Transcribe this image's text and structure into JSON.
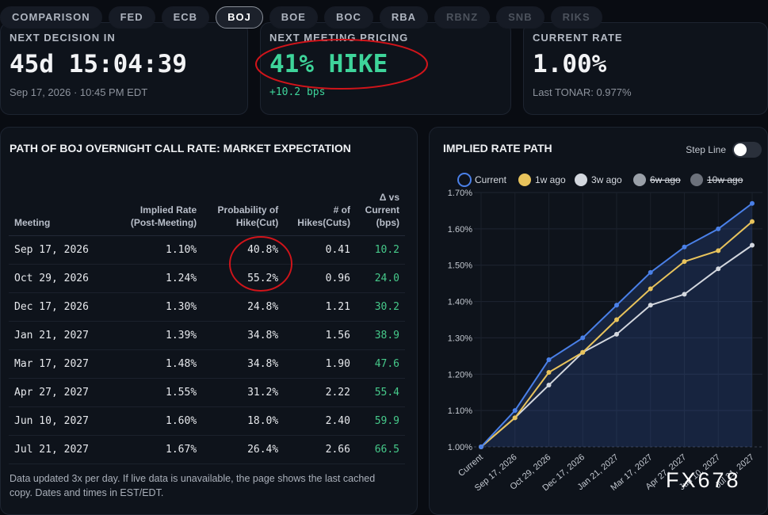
{
  "tabs": [
    {
      "label": "COMPARISON"
    },
    {
      "label": "FED"
    },
    {
      "label": "ECB"
    },
    {
      "label": "BOJ",
      "active": true
    },
    {
      "label": "BOE"
    },
    {
      "label": "BOC"
    },
    {
      "label": "RBA"
    },
    {
      "label": "RBNZ",
      "locked": true
    },
    {
      "label": "SNB",
      "locked": true
    },
    {
      "label": "RIKS",
      "locked": true
    }
  ],
  "cards": [
    {
      "label": "NEXT DECISION IN",
      "value": "45d 15:04:39",
      "sub": "Sep 17, 2026 · 10:45 PM EDT"
    },
    {
      "label": "NEXT MEETING PRICING",
      "value": "41% HIKE",
      "sub": "+10.2 bps"
    },
    {
      "label": "CURRENT RATE",
      "value": "1.00%",
      "sub": "Last TONAR: 0.977%"
    }
  ],
  "table": {
    "title": "PATH OF BOJ OVERNIGHT CALL RATE: MARKET EXPECTATION",
    "columns": [
      [
        "Meeting"
      ],
      [
        "Implied Rate",
        "(Post-Meeting)"
      ],
      [
        "Probability of",
        "Hike(Cut)"
      ],
      [
        "# of",
        "Hikes(Cuts)"
      ],
      [
        "Δ vs",
        "Current",
        "(bps)"
      ]
    ],
    "rows": [
      [
        "Sep 17, 2026",
        "1.10%",
        "40.8%",
        "0.41",
        "10.2"
      ],
      [
        "Oct 29, 2026",
        "1.24%",
        "55.2%",
        "0.96",
        "24.0"
      ],
      [
        "Dec 17, 2026",
        "1.30%",
        "24.8%",
        "1.21",
        "30.2"
      ],
      [
        "Jan 21, 2027",
        "1.39%",
        "34.8%",
        "1.56",
        "38.9"
      ],
      [
        "Mar 17, 2027",
        "1.48%",
        "34.8%",
        "1.90",
        "47.6"
      ],
      [
        "Apr 27, 2027",
        "1.55%",
        "31.2%",
        "2.22",
        "55.4"
      ],
      [
        "Jun 10, 2027",
        "1.60%",
        "18.0%",
        "2.40",
        "59.9"
      ],
      [
        "Jul 21, 2027",
        "1.67%",
        "26.4%",
        "2.66",
        "66.5"
      ]
    ],
    "footnote": "Data updated 3x per day. If live data is unavailable, the page shows the last cached copy. Dates and times in EST/EDT."
  },
  "chart_data": {
    "type": "line",
    "title": "IMPLIED RATE PATH",
    "toggle_label": "Step Line",
    "categories": [
      "Current",
      "Sep 17, 2026",
      "Oct 29, 2026",
      "Dec 17, 2026",
      "Jan 21, 2027",
      "Mar 17, 2027",
      "Apr 27, 2027",
      "Jun 10, 2027",
      "Jul 21, 2027"
    ],
    "series": [
      {
        "name": "Current",
        "color": "#4a80e8",
        "values": [
          1.0,
          1.1,
          1.24,
          1.3,
          1.39,
          1.48,
          1.55,
          1.6,
          1.67
        ]
      },
      {
        "name": "1w ago",
        "color": "#e8c35c",
        "values": [
          1.0,
          1.08,
          1.205,
          1.26,
          1.35,
          1.435,
          1.51,
          1.54,
          1.62
        ]
      },
      {
        "name": "3w ago",
        "color": "#d3d7de",
        "values": [
          1.0,
          1.08,
          1.17,
          1.26,
          1.31,
          1.39,
          1.42,
          1.49,
          1.555
        ]
      }
    ],
    "hidden_series": [
      {
        "name": "6w ago",
        "color": "#9aa0a8"
      },
      {
        "name": "10w ago",
        "color": "#6c717b"
      }
    ],
    "ylim": [
      1.0,
      1.7
    ],
    "yticks": [
      {
        "value": 1.0,
        "label": "1.00%"
      },
      {
        "value": 1.1,
        "label": "1.10%"
      },
      {
        "value": 1.2,
        "label": "1.20%"
      },
      {
        "value": 1.3,
        "label": "1.30%"
      },
      {
        "value": 1.4,
        "label": "1.40%"
      },
      {
        "value": 1.5,
        "label": "1.50%"
      },
      {
        "value": 1.6,
        "label": "1.60%"
      },
      {
        "value": 1.7,
        "label": "1.70%"
      }
    ],
    "grid": true
  },
  "watermark": "FX678"
}
